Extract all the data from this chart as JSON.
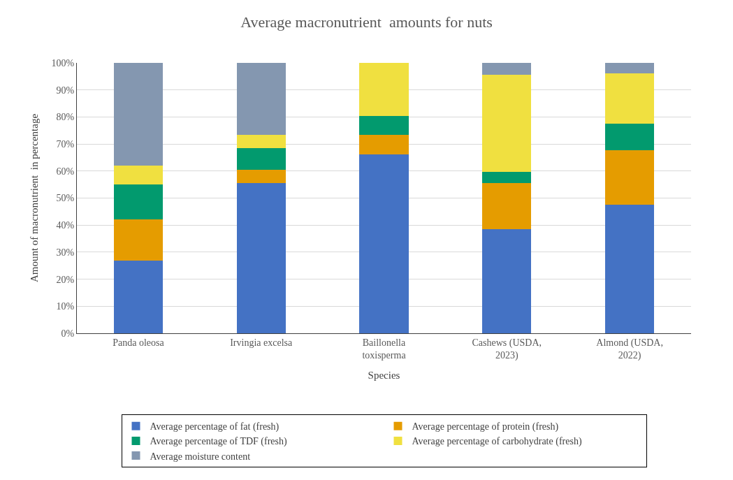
{
  "chart_data": {
    "type": "bar",
    "stacked": true,
    "title": "Average macronutrient  amounts for nuts",
    "xlabel": "Species",
    "ylabel": "Amount of macronutrient  in percentage",
    "categories": [
      "Panda oleosa",
      "Irvingia excelsa",
      "Baillonella\ntoxisperma",
      "Cashews (USDA,\n2023)",
      "Almond (USDA,\n2022)"
    ],
    "series": [
      {
        "name": "Average percentage of fat (fresh)",
        "color": "#4472c4",
        "values": [
          27,
          55.5,
          66.2,
          38.4,
          47.6
        ]
      },
      {
        "name": "Average percentage of protein (fresh)",
        "color": "#e59c00",
        "values": [
          15,
          5,
          7.3,
          17.1,
          20
        ]
      },
      {
        "name": "Average percentage of TDF (fresh)",
        "color": "#029a6e",
        "values": [
          13,
          8,
          6.8,
          4.3,
          9.8
        ]
      },
      {
        "name": "Average percentage of carbohydrate (fresh)",
        "color": "#f0e040",
        "values": [
          7,
          5,
          19.7,
          35.9,
          18.6
        ]
      },
      {
        "name": "Average moisture content",
        "color": "#8497b0",
        "values": [
          38,
          26.5,
          0,
          4.3,
          4
        ]
      }
    ],
    "ylim": [
      0,
      100
    ],
    "yticks": [
      {
        "value": 0,
        "label": "0%"
      },
      {
        "value": 10,
        "label": "10%"
      },
      {
        "value": 20,
        "label": "20%"
      },
      {
        "value": 30,
        "label": "30%"
      },
      {
        "value": 40,
        "label": "40%"
      },
      {
        "value": 50,
        "label": "50%"
      },
      {
        "value": 60,
        "label": "60%"
      },
      {
        "value": 70,
        "label": "70%"
      },
      {
        "value": 80,
        "label": "80%"
      },
      {
        "value": 90,
        "label": "90%"
      },
      {
        "value": 100,
        "label": "100%"
      }
    ],
    "grid": "y",
    "legend": "bottom"
  }
}
